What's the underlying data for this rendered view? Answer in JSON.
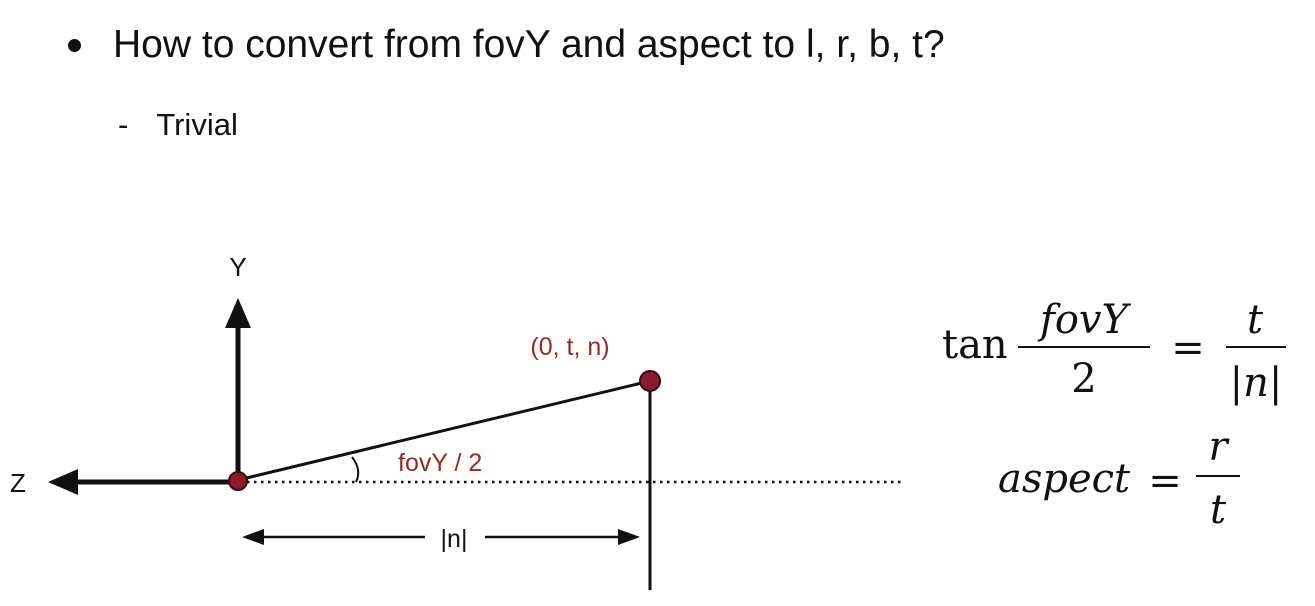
{
  "slide": {
    "bullet": "How to convert from fovY and aspect to l, r, b, t?",
    "sub_bullet": "Trivial"
  },
  "diagram": {
    "y_axis_label": "Y",
    "z_axis_label": "Z",
    "point_label": "(0, t, n)",
    "angle_label": "fovY / 2",
    "distance_label": "|n|"
  },
  "equations": {
    "eq1": {
      "lhs_func": "tan",
      "lhs_num": "fovY",
      "lhs_den": "2",
      "rhs_num": "t",
      "rhs_den": "|n|"
    },
    "eq2": {
      "lhs": "aspect",
      "rhs_num": "r",
      "rhs_den": "t"
    }
  },
  "colors": {
    "accent_red": "#9b2a1e",
    "point_fill": "#8b1a2c"
  }
}
